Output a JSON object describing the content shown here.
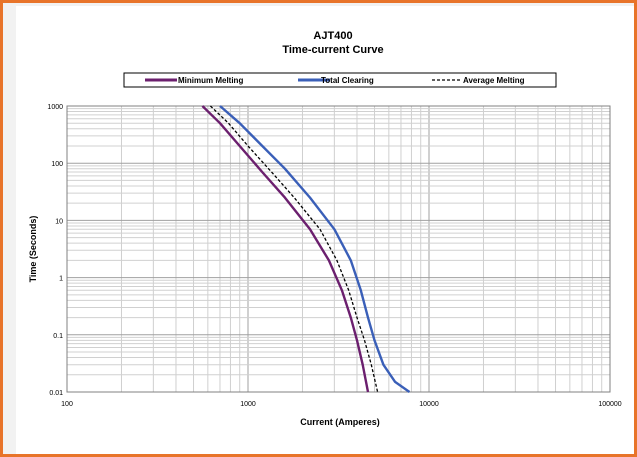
{
  "chart_data": {
    "type": "line",
    "title": "AJT400",
    "subtitle": "Time-current Curve",
    "xlabel": "Current (Amperes)",
    "ylabel": "Time (Seconds)",
    "x_scale": "log",
    "y_scale": "log",
    "xlim": [
      100,
      100000
    ],
    "ylim": [
      0.01,
      1000
    ],
    "x_ticks": [
      "100",
      "1000",
      "10000",
      "100000"
    ],
    "y_ticks": [
      "0.01",
      "0.1",
      "1",
      "10",
      "100",
      "1000"
    ],
    "grid": true,
    "legend_position": "top",
    "series": [
      {
        "name": "Minimum Melting",
        "color": "#6b1f6e",
        "style": "solid",
        "x": [
          560,
          700,
          900,
          1200,
          1600,
          2200,
          2800,
          3300,
          3700,
          4000,
          4300,
          4600
        ],
        "y": [
          1000,
          500,
          200,
          70,
          25,
          7,
          2,
          0.6,
          0.2,
          0.08,
          0.03,
          0.01
        ]
      },
      {
        "name": "Total Clearing",
        "color": "#3a5fb8",
        "style": "solid",
        "x": [
          700,
          900,
          1200,
          1600,
          2200,
          3000,
          3700,
          4200,
          4600,
          5000,
          5600,
          6500,
          7800
        ],
        "y": [
          1000,
          500,
          200,
          80,
          25,
          7,
          2,
          0.6,
          0.2,
          0.08,
          0.03,
          0.015,
          0.01
        ]
      },
      {
        "name": "Average Melting",
        "color": "#000000",
        "style": "dashed",
        "x": [
          620,
          780,
          1000,
          1350,
          1800,
          2500,
          3100,
          3600,
          4000,
          4400,
          4800,
          5200
        ],
        "y": [
          1000,
          500,
          200,
          70,
          25,
          7,
          2,
          0.6,
          0.2,
          0.08,
          0.03,
          0.01
        ]
      }
    ]
  }
}
